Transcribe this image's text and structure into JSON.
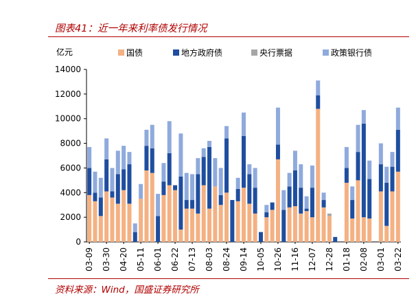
{
  "title": "图表41：近一年来利率债发行情况",
  "source": "资料来源：Wind，国盛证券研究所",
  "colors": {
    "accent": "#b00000",
    "国债": "#f4b183",
    "地方政府债": "#1f4e9f",
    "央行票据": "#a6a6a6",
    "政策银行债": "#8faadc"
  },
  "chart_data": {
    "type": "bar",
    "stacked": true,
    "ylabel": "亿元",
    "ylim": [
      0,
      14000
    ],
    "yticks": [
      0,
      2000,
      4000,
      6000,
      8000,
      10000,
      12000,
      14000
    ],
    "legend_position": "top",
    "categories": [
      "03-09",
      "03-16",
      "03-23",
      "03-30",
      "04-06",
      "04-13",
      "04-20",
      "04-27",
      "05-04",
      "05-11",
      "05-18",
      "05-25",
      "06-01",
      "06-08",
      "06-15",
      "06-22",
      "06-29",
      "07-06",
      "07-13",
      "07-20",
      "07-27",
      "08-03",
      "08-10",
      "08-17",
      "08-24",
      "08-31",
      "09-07",
      "09-14",
      "09-21",
      "09-28",
      "10-05",
      "10-12",
      "10-19",
      "10-26",
      "11-02",
      "11-09",
      "11-16",
      "11-23",
      "11-30",
      "12-07",
      "12-14",
      "12-21",
      "12-28",
      "01-04",
      "01-11",
      "01-18",
      "01-25",
      "02-01",
      "02-08",
      "02-15",
      "02-22",
      "03-01",
      "03-08",
      "03-15",
      "03-22"
    ],
    "tick_labels": [
      "03-09",
      "03-30",
      "04-20",
      "05-11",
      "06-01",
      "06-22",
      "07-13",
      "08-03",
      "08-24",
      "09-14",
      "10-05",
      "10-26",
      "11-16",
      "12-07",
      "12-28",
      "01-18",
      "02-08",
      "03-01",
      "03-22"
    ],
    "series": [
      {
        "name": "国债",
        "values": [
          3800,
          3300,
          2100,
          4100,
          3600,
          3100,
          4200,
          3100,
          0,
          3500,
          5800,
          5600,
          0,
          3800,
          4600,
          4200,
          1000,
          2700,
          2700,
          2300,
          4600,
          2700,
          4500,
          3000,
          4000,
          0,
          3300,
          4400,
          3100,
          2300,
          0,
          2000,
          2600,
          6700,
          0,
          2800,
          2900,
          2300,
          2500,
          2000,
          10800,
          2800,
          2100,
          0,
          0,
          4800,
          1900,
          5000,
          2000,
          1900,
          0,
          4100,
          1300,
          4100,
          5700
        ]
      },
      {
        "name": "地方政府债",
        "values": [
          2200,
          700,
          1500,
          2600,
          500,
          2400,
          1700,
          3200,
          800,
          0,
          2000,
          2000,
          2100,
          1100,
          2600,
          400,
          4300,
          700,
          700,
          3200,
          2300,
          5000,
          0,
          800,
          4400,
          3400,
          1000,
          4200,
          2400,
          2100,
          800,
          400,
          600,
          1200,
          2600,
          1700,
          2900,
          2100,
          200,
          2400,
          1100,
          600,
          0,
          400,
          0,
          1200,
          1500,
          2300,
          7600,
          3200,
          0,
          2200,
          3500,
          2000,
          3400
        ]
      },
      {
        "name": "央行票据",
        "values": [
          0,
          0,
          0,
          0,
          0,
          0,
          0,
          0,
          0,
          0,
          0,
          0,
          0,
          0,
          0,
          0,
          0,
          0,
          0,
          0,
          0,
          0,
          0,
          0,
          0,
          0,
          0,
          0,
          0,
          0,
          0,
          0,
          0,
          0,
          0,
          0,
          0,
          0,
          0,
          0,
          0,
          0,
          200,
          0,
          0,
          0,
          0,
          0,
          0,
          0,
          0,
          0,
          0,
          0,
          0
        ]
      },
      {
        "name": "政策银行债",
        "values": [
          1700,
          1700,
          1600,
          1700,
          1900,
          1900,
          1900,
          1000,
          700,
          1200,
          1300,
          1900,
          1800,
          1500,
          2600,
          0,
          3500,
          2200,
          2100,
          1300,
          700,
          500,
          2300,
          2200,
          1000,
          0,
          900,
          1900,
          800,
          1600,
          0,
          600,
          0,
          3000,
          1600,
          1100,
          1600,
          1900,
          1000,
          1800,
          1200,
          600,
          0,
          0,
          0,
          1700,
          1100,
          2200,
          1100,
          1500,
          0,
          1700,
          1300,
          1200,
          1800
        ]
      }
    ]
  }
}
